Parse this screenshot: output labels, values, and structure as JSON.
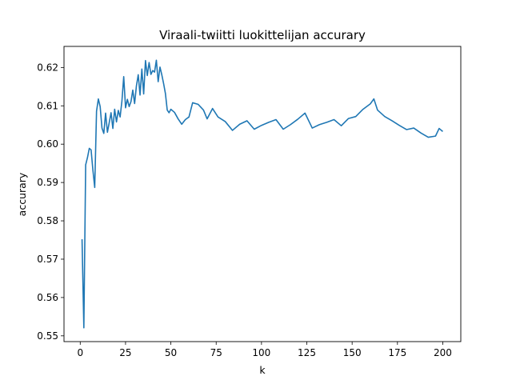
{
  "chart_data": {
    "type": "line",
    "title": "Viraali-twiitti luokittelijan accurary",
    "xlabel": "k",
    "ylabel": "accurary",
    "xlim": [
      -8.95,
      209.95
    ],
    "ylim": [
      0.5485,
      0.6255
    ],
    "xticks": [
      0,
      25,
      50,
      75,
      100,
      125,
      150,
      175,
      200
    ],
    "yticks": [
      0.55,
      0.56,
      0.57,
      0.58,
      0.59,
      0.6,
      0.61,
      0.62
    ],
    "ytick_labels": [
      "0.55",
      "0.56",
      "0.57",
      "0.58",
      "0.59",
      "0.60",
      "0.61",
      "0.62"
    ],
    "grid": false,
    "series": [
      {
        "color": "#1f77b4",
        "x": [
          1,
          2,
          3,
          4,
          5,
          6,
          7,
          8,
          9,
          10,
          11,
          12,
          13,
          14,
          15,
          16,
          17,
          18,
          19,
          20,
          21,
          22,
          23,
          24,
          25,
          26,
          27,
          28,
          29,
          30,
          31,
          32,
          33,
          34,
          35,
          36,
          37,
          38,
          39,
          40,
          41,
          42,
          43,
          44,
          45,
          46,
          47,
          48,
          49,
          50,
          52,
          54,
          56,
          58,
          60,
          62,
          65,
          68,
          70,
          73,
          76,
          80,
          84,
          88,
          92,
          96,
          100,
          104,
          108,
          112,
          116,
          120,
          124,
          128,
          132,
          136,
          140,
          144,
          148,
          152,
          156,
          160,
          162,
          164,
          168,
          172,
          176,
          180,
          184,
          188,
          192,
          196,
          198,
          200
        ],
        "y": [
          0.5752,
          0.5521,
          0.5946,
          0.5965,
          0.5989,
          0.5985,
          0.5932,
          0.5887,
          0.6086,
          0.6118,
          0.6098,
          0.6042,
          0.6028,
          0.6081,
          0.6031,
          0.6056,
          0.6082,
          0.6041,
          0.6091,
          0.6058,
          0.6088,
          0.6071,
          0.6112,
          0.6176,
          0.6095,
          0.6117,
          0.6098,
          0.6111,
          0.6141,
          0.6106,
          0.6152,
          0.6181,
          0.6128,
          0.6196,
          0.6131,
          0.6218,
          0.6179,
          0.6213,
          0.6182,
          0.6192,
          0.6188,
          0.6219,
          0.6163,
          0.6201,
          0.6181,
          0.6158,
          0.6132,
          0.6089,
          0.6082,
          0.6091,
          0.6083,
          0.6066,
          0.6052,
          0.6064,
          0.6071,
          0.6108,
          0.6104,
          0.6089,
          0.6066,
          0.6093,
          0.6071,
          0.6059,
          0.6036,
          0.6052,
          0.6061,
          0.6039,
          0.6049,
          0.6057,
          0.6064,
          0.6039,
          0.6051,
          0.6065,
          0.6081,
          0.6042,
          0.6051,
          0.6057,
          0.6064,
          0.6048,
          0.6067,
          0.6072,
          0.6091,
          0.6105,
          0.6118,
          0.6089,
          0.6072,
          0.6061,
          0.6049,
          0.6038,
          0.6042,
          0.6029,
          0.6018,
          0.6021,
          0.6041,
          0.6033
        ]
      }
    ]
  }
}
